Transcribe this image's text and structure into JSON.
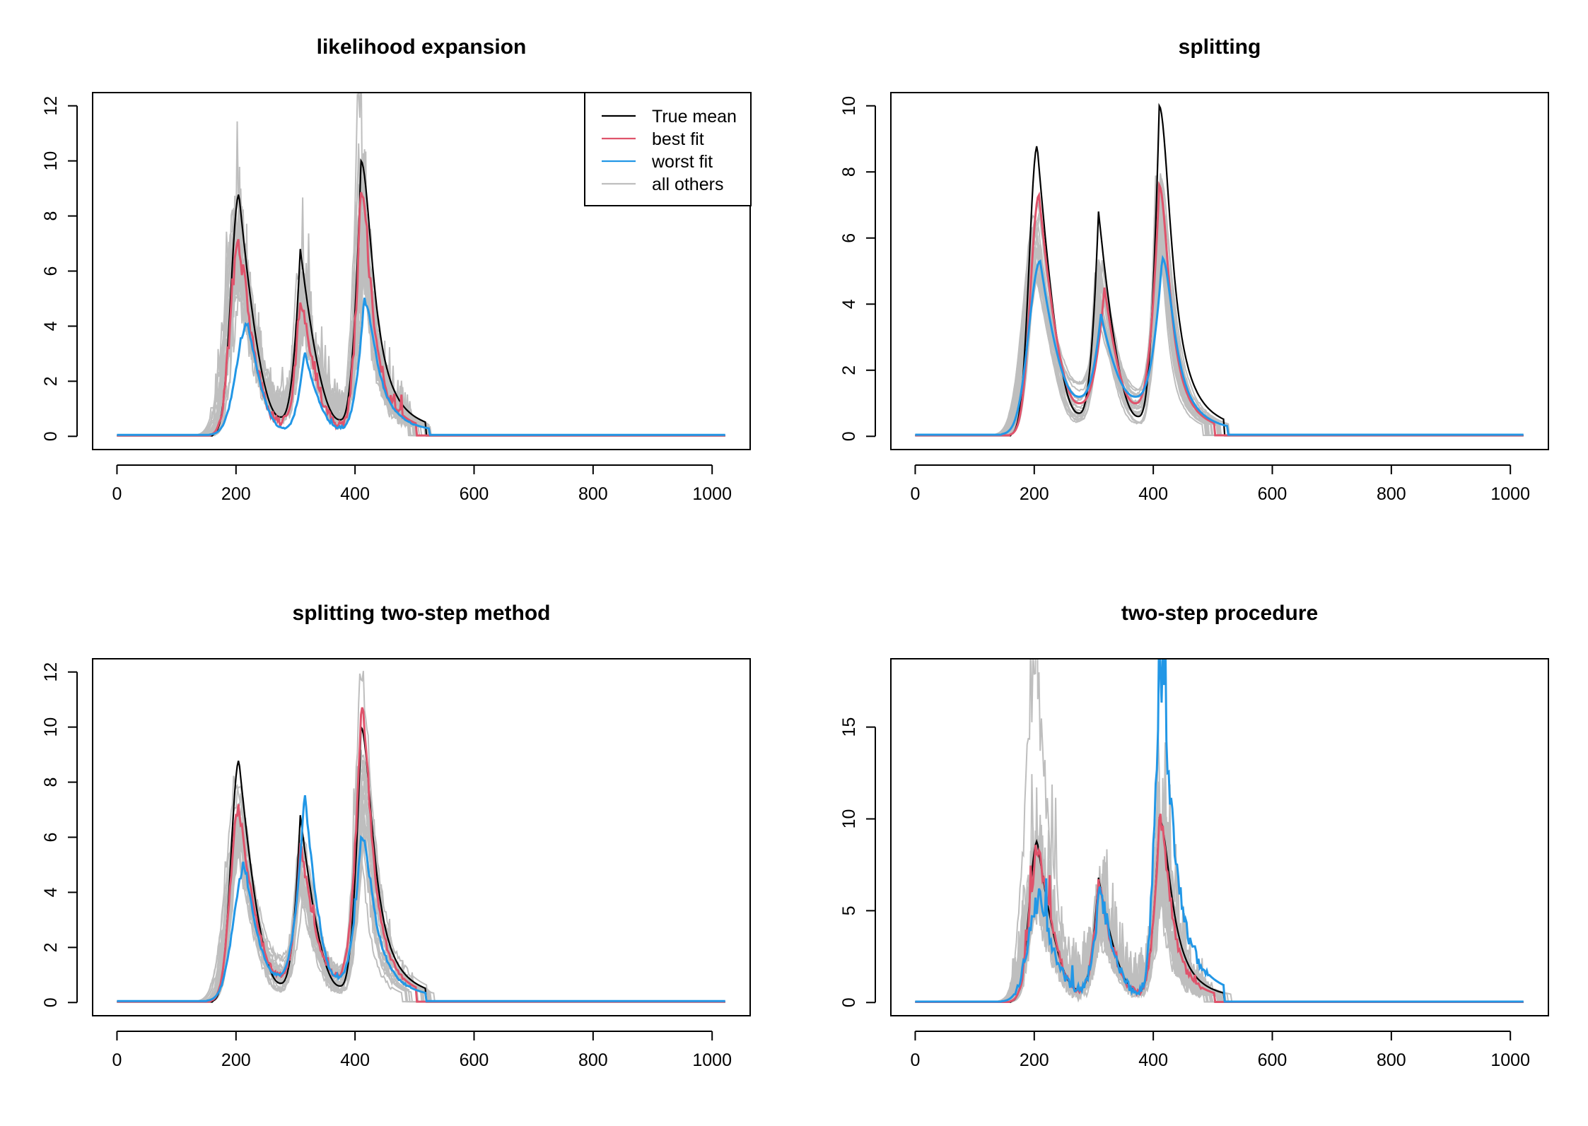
{
  "colors": {
    "true_mean": "#000000",
    "best_fit": "#DF536B",
    "worst_fit": "#2297E6",
    "all_others": "#BEBEBE"
  },
  "legend": {
    "entries": [
      {
        "label": "True mean",
        "color": "#000000"
      },
      {
        "label": "best fit",
        "color": "#DF536B"
      },
      {
        "label": "worst fit",
        "color": "#2297E6"
      },
      {
        "label": "all others",
        "color": "#BEBEBE"
      }
    ]
  },
  "chart_data": [
    {
      "type": "line",
      "title": "likelihood expansion",
      "xlabel": "",
      "ylabel": "",
      "xlim": [
        0,
        1023
      ],
      "ylim": [
        0,
        12
      ],
      "xticks": [
        0,
        200,
        400,
        600,
        800,
        1000
      ],
      "yticks": [
        0,
        2,
        4,
        6,
        8,
        10,
        12
      ],
      "legend_position": "top-right",
      "series": [
        {
          "role": "true_mean",
          "peaks": [
            [
              205,
              8.8
            ],
            [
              308,
              6.8
            ],
            [
              410,
              10.0
            ]
          ],
          "troughs": [
            [
              275,
              0.7
            ],
            [
              375,
              0.6
            ]
          ]
        },
        {
          "role": "best_fit",
          "peaks": [
            [
              205,
              7.1
            ],
            [
              308,
              5.3
            ],
            [
              410,
              9.0
            ]
          ],
          "troughs": [
            [
              275,
              0.5
            ],
            [
              375,
              0.4
            ]
          ]
        },
        {
          "role": "worst_fit",
          "peaks": [
            [
              220,
              4.1
            ],
            [
              315,
              3.1
            ],
            [
              415,
              4.9
            ]
          ],
          "troughs": [
            [
              280,
              0.3
            ],
            [
              375,
              0.3
            ]
          ]
        },
        {
          "role": "all_others",
          "max": 11.9
        }
      ]
    },
    {
      "type": "line",
      "title": "splitting",
      "xlabel": "",
      "ylabel": "",
      "xlim": [
        0,
        1023
      ],
      "ylim": [
        0,
        10
      ],
      "xticks": [
        0,
        200,
        400,
        600,
        800,
        1000
      ],
      "yticks": [
        0,
        2,
        4,
        6,
        8,
        10
      ],
      "series": [
        {
          "role": "true_mean",
          "peaks": [
            [
              205,
              8.8
            ],
            [
              308,
              6.8
            ],
            [
              410,
              10.0
            ]
          ],
          "troughs": [
            [
              275,
              0.7
            ],
            [
              375,
              0.6
            ]
          ]
        },
        {
          "role": "best_fit",
          "peaks": [
            [
              208,
              7.3
            ],
            [
              318,
              4.5
            ],
            [
              410,
              7.6
            ]
          ],
          "troughs": [
            [
              275,
              1.0
            ],
            [
              370,
              1.0
            ]
          ]
        },
        {
          "role": "worst_fit",
          "peaks": [
            [
              210,
              5.3
            ],
            [
              312,
              3.7
            ],
            [
              415,
              5.4
            ]
          ],
          "troughs": [
            [
              275,
              1.2
            ],
            [
              370,
              1.2
            ]
          ]
        },
        {
          "role": "all_others",
          "max": 7.9
        }
      ]
    },
    {
      "type": "line",
      "title": "splitting two-step method",
      "xlabel": "",
      "ylabel": "",
      "xlim": [
        0,
        1023
      ],
      "ylim": [
        0,
        12
      ],
      "xticks": [
        0,
        200,
        400,
        600,
        800,
        1000
      ],
      "yticks": [
        0,
        2,
        4,
        6,
        8,
        10,
        12
      ],
      "series": [
        {
          "role": "true_mean",
          "peaks": [
            [
              205,
              8.8
            ],
            [
              308,
              6.8
            ],
            [
              410,
              10.0
            ]
          ],
          "troughs": [
            [
              275,
              0.7
            ],
            [
              375,
              0.6
            ]
          ]
        },
        {
          "role": "best_fit",
          "peaks": [
            [
              205,
              7.1
            ],
            [
              308,
              5.8
            ],
            [
              410,
              10.7
            ]
          ],
          "troughs": [
            [
              275,
              1.0
            ],
            [
              370,
              1.0
            ]
          ]
        },
        {
          "role": "worst_fit",
          "peaks": [
            [
              215,
              4.9
            ],
            [
              315,
              7.7
            ],
            [
              410,
              6.1
            ]
          ],
          "troughs": [
            [
              270,
              1.0
            ],
            [
              370,
              0.9
            ]
          ]
        },
        {
          "role": "all_others",
          "max": 12.2
        }
      ]
    },
    {
      "type": "line",
      "title": "two-step procedure",
      "xlabel": "",
      "ylabel": "",
      "xlim": [
        0,
        1023
      ],
      "ylim": [
        0,
        18
      ],
      "xticks": [
        0,
        200,
        400,
        600,
        800,
        1000
      ],
      "yticks": [
        0,
        5,
        10,
        15
      ],
      "series": [
        {
          "role": "true_mean",
          "peaks": [
            [
              205,
              8.8
            ],
            [
              308,
              6.8
            ],
            [
              410,
              10.0
            ]
          ],
          "troughs": [
            [
              275,
              0.7
            ],
            [
              375,
              0.6
            ]
          ]
        },
        {
          "role": "best_fit",
          "peaks": [
            [
              207,
              8.5
            ],
            [
              308,
              6.5
            ],
            [
              410,
              10.0
            ]
          ],
          "troughs": [
            [
              275,
              0.7
            ],
            [
              375,
              0.6
            ]
          ]
        },
        {
          "role": "worst_fit",
          "peaks": [
            [
              210,
              5.7
            ],
            [
              310,
              6.3
            ],
            [
              410,
              18.1
            ]
          ],
          "troughs": [
            [
              275,
              0.8
            ],
            [
              375,
              0.6
            ]
          ]
        },
        {
          "role": "all_others",
          "max": 18.2
        }
      ]
    }
  ]
}
